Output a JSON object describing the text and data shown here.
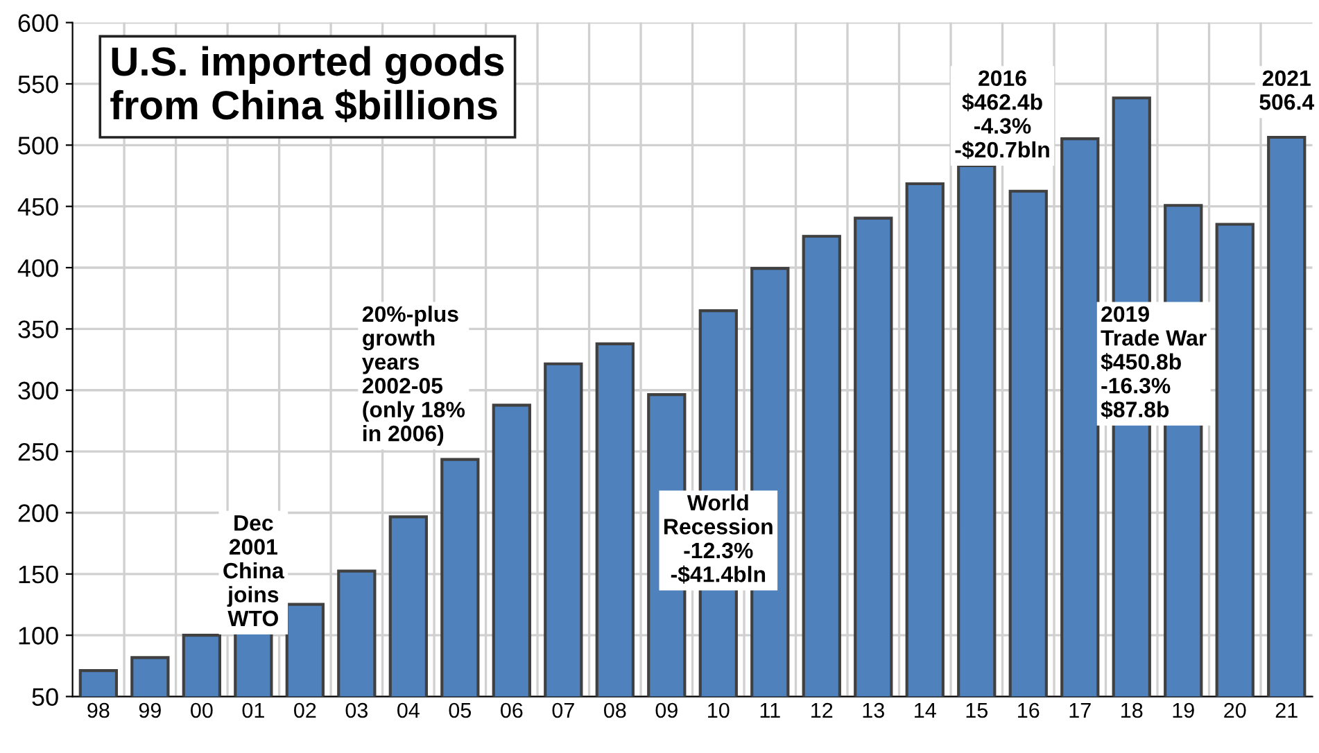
{
  "chart_data": {
    "type": "bar",
    "title": "U.S. imported goods\nfrom China $billions",
    "categories": [
      "98",
      "99",
      "00",
      "01",
      "02",
      "03",
      "04",
      "05",
      "06",
      "07",
      "08",
      "09",
      "10",
      "11",
      "12",
      "13",
      "14",
      "15",
      "16",
      "17",
      "18",
      "19",
      "20",
      "21"
    ],
    "values": [
      71.2,
      81.8,
      100.0,
      102.3,
      125.2,
      152.4,
      196.7,
      243.5,
      287.8,
      321.5,
      337.8,
      296.4,
      364.9,
      399.4,
      425.6,
      440.4,
      468.5,
      483.2,
      462.4,
      505.2,
      538.5,
      450.8,
      435.4,
      506.4
    ],
    "color": "#4f81bd",
    "ylim": [
      50,
      600
    ],
    "yticks": [
      50,
      100,
      150,
      200,
      250,
      300,
      350,
      400,
      450,
      500,
      550,
      600
    ],
    "grid": true,
    "annotations": [
      "Dec\n2001\nChina\njoins\nWTO",
      "20%-plus\ngrowth\nyears\n2002-05\n(only 18%\nin 2006)",
      "World\nRecession\n-12.3%\n-$41.4bln",
      "2016\n$462.4b\n-4.3%\n-$20.7bln",
      "2019\nTrade War\n$450.8b\n-16.3%\n$87.8b",
      "2021\n506.4"
    ]
  }
}
